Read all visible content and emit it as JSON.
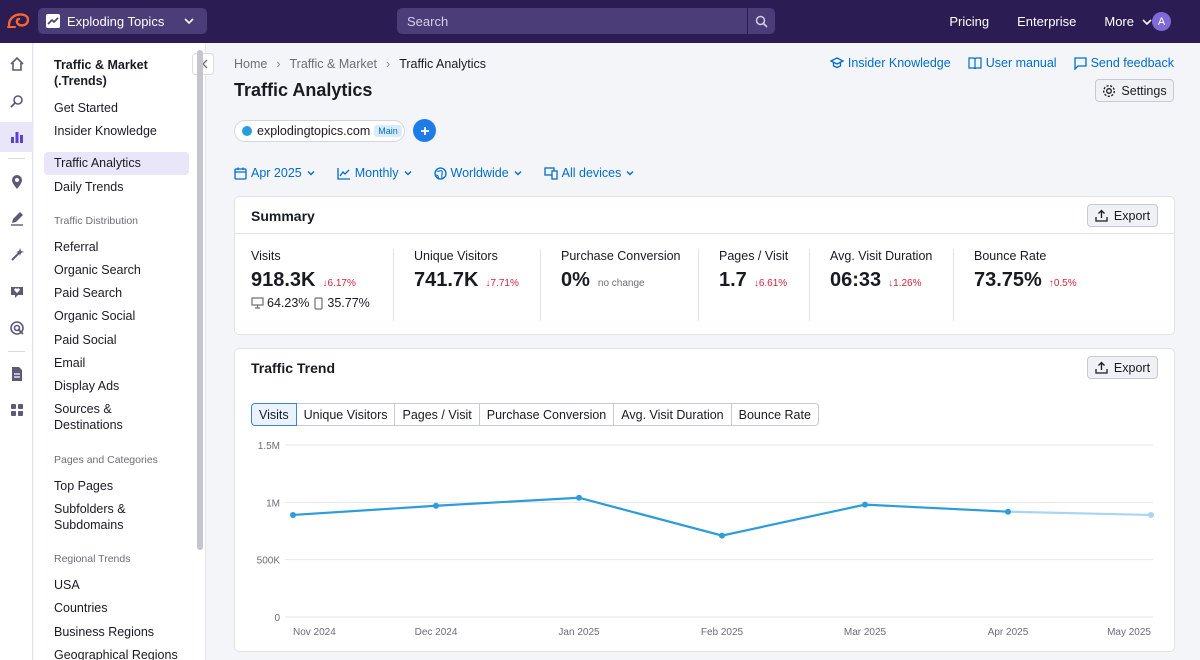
{
  "topbar": {
    "project_name": "Exploding Topics",
    "search_placeholder": "Search",
    "nav": [
      "Pricing",
      "Enterprise",
      "More"
    ],
    "avatar_initial": "A"
  },
  "sidebar": {
    "title": "Traffic & Market (.Trends)",
    "items_top": [
      "Get Started",
      "Insider Knowledge"
    ],
    "active_item": "Traffic Analytics",
    "item_daily": "Daily Trends",
    "section1": "Traffic Distribution",
    "section1_items": [
      "Referral",
      "Organic Search",
      "Paid Search",
      "Organic Social",
      "Paid Social",
      "Email",
      "Display Ads",
      "Sources & Destinations"
    ],
    "section2": "Pages and Categories",
    "section2_items": [
      "Top Pages",
      "Subfolders & Subdomains"
    ],
    "section3": "Regional Trends",
    "section3_items": [
      "USA",
      "Countries",
      "Business Regions",
      "Geographical Regions"
    ]
  },
  "breadcrumb": [
    "Home",
    "Traffic & Market",
    "Traffic Analytics"
  ],
  "links": {
    "insider": "Insider Knowledge",
    "manual": "User manual",
    "feedback": "Send feedback"
  },
  "page_title": "Traffic Analytics",
  "settings_label": "Settings",
  "domain": {
    "name": "explodingtopics.com",
    "badge": "Main"
  },
  "filters": {
    "date": "Apr 2025",
    "period": "Monthly",
    "region": "Worldwide",
    "devices": "All devices"
  },
  "summary": {
    "title": "Summary",
    "export": "Export",
    "metrics": [
      {
        "label": "Visits",
        "value": "918.3K",
        "change": "↓6.17%"
      },
      {
        "label": "Unique Visitors",
        "value": "741.7K",
        "change": "↓7.71%"
      },
      {
        "label": "Purchase Conversion",
        "value": "0%",
        "change": "no change"
      },
      {
        "label": "Pages / Visit",
        "value": "1.7",
        "change": "↓6.61%"
      },
      {
        "label": "Avg. Visit Duration",
        "value": "06:33",
        "change": "↓1.26%"
      },
      {
        "label": "Bounce Rate",
        "value": "73.75%",
        "change": "↑0.5%"
      }
    ],
    "desktop_share": "64.23%",
    "mobile_share": "35.77%"
  },
  "trend": {
    "title": "Traffic Trend",
    "export": "Export",
    "tabs": [
      "Visits",
      "Unique Visitors",
      "Pages / Visit",
      "Purchase Conversion",
      "Avg. Visit Duration",
      "Bounce Rate"
    ],
    "active_tab": "Visits"
  },
  "chart_data": {
    "type": "line",
    "categories": [
      "Nov 2024",
      "Dec 2024",
      "Jan 2025",
      "Feb 2025",
      "Mar 2025",
      "Apr 2025",
      "May 2025"
    ],
    "series": [
      {
        "name": "Visits",
        "values": [
          890000,
          970000,
          1040000,
          710000,
          980000,
          918300,
          890000
        ]
      }
    ],
    "ylim": [
      0,
      1500000
    ],
    "yticks": [
      "0",
      "500K",
      "1M",
      "1.5M"
    ],
    "ytick_values": [
      0,
      500000,
      1000000,
      1500000
    ],
    "line_color": "#2d9cdb",
    "partial_color": "#a8d6f2"
  }
}
